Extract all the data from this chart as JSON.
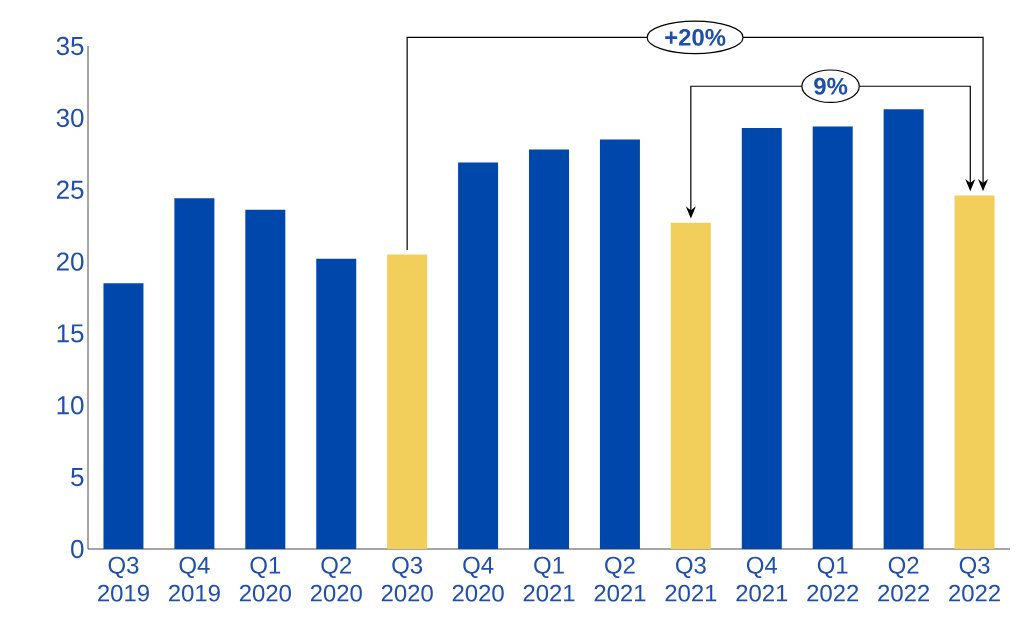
{
  "chart_data": {
    "type": "bar",
    "categories": [
      "Q3 2019",
      "Q4 2019",
      "Q1 2020",
      "Q2 2020",
      "Q3 2020",
      "Q4 2020",
      "Q1 2021",
      "Q2 2021",
      "Q3 2021",
      "Q4 2021",
      "Q1 2022",
      "Q2 2022",
      "Q3 2022"
    ],
    "values": [
      18.5,
      24.4,
      23.6,
      20.2,
      20.5,
      26.9,
      27.8,
      28.5,
      22.7,
      29.3,
      29.4,
      30.6,
      24.6
    ],
    "colors": [
      "#0047ab",
      "#0047ab",
      "#0047ab",
      "#0047ab",
      "#f2cf5b",
      "#0047ab",
      "#0047ab",
      "#0047ab",
      "#f2cf5b",
      "#0047ab",
      "#0047ab",
      "#0047ab",
      "#f2cf5b"
    ],
    "ylim": [
      0,
      35
    ],
    "yticks": [
      0,
      5,
      10,
      15,
      20,
      25,
      30,
      35
    ],
    "annotations": [
      "+20%",
      "9%"
    ]
  }
}
